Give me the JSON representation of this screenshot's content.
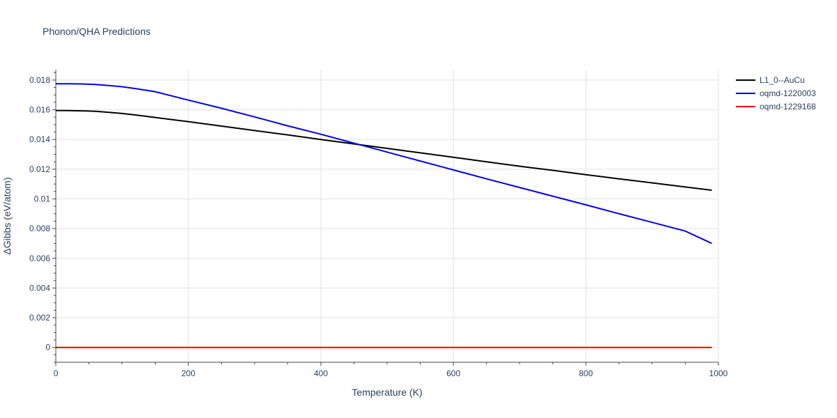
{
  "chart_data": {
    "type": "line",
    "title": "Phonon/QHA Predictions",
    "xlabel": "Temperature (K)",
    "ylabel": "ΔGibbs (eV/atom)",
    "xlim": [
      0,
      1000
    ],
    "ylim": [
      -0.001,
      0.0187
    ],
    "x_ticks": [
      0,
      200,
      400,
      600,
      800,
      1000
    ],
    "x_tick_labels": [
      "0",
      "200",
      "400",
      "600",
      "800",
      "1000"
    ],
    "y_ticks": [
      0,
      0.002,
      0.004,
      0.006,
      0.008,
      0.01,
      0.012,
      0.014,
      0.016,
      0.018
    ],
    "y_tick_labels": [
      "0",
      "0.002",
      "0.004",
      "0.006",
      "0.008",
      "0.01",
      "0.012",
      "0.014",
      "0.016",
      "0.018"
    ],
    "grid": true,
    "legend_position": "top-right",
    "series": [
      {
        "name": "L1_0--AuCu",
        "color": "#000000",
        "x": [
          0,
          20,
          40,
          60,
          80,
          100,
          120,
          150,
          200,
          250,
          300,
          350,
          400,
          450,
          500,
          550,
          600,
          650,
          700,
          750,
          800,
          850,
          900,
          950,
          990
        ],
        "y": [
          0.01595,
          0.01594,
          0.01593,
          0.0159,
          0.01583,
          0.01575,
          0.01565,
          0.01548,
          0.0152,
          0.0149,
          0.0146,
          0.01431,
          0.014,
          0.0137,
          0.0134,
          0.0131,
          0.0128,
          0.0125,
          0.0122,
          0.01192,
          0.01163,
          0.01135,
          0.01108,
          0.0108,
          0.01058
        ]
      },
      {
        "name": "oqmd-1220003",
        "color": "#0000ee",
        "x": [
          0,
          20,
          40,
          60,
          80,
          100,
          120,
          150,
          200,
          250,
          300,
          350,
          400,
          450,
          500,
          550,
          600,
          650,
          700,
          750,
          800,
          850,
          900,
          950,
          990
        ],
        "y": [
          0.01775,
          0.01775,
          0.01774,
          0.0177,
          0.01763,
          0.01755,
          0.01743,
          0.01722,
          0.01665,
          0.0161,
          0.01552,
          0.01492,
          0.01435,
          0.01375,
          0.01315,
          0.01255,
          0.01195,
          0.01135,
          0.01077,
          0.01018,
          0.0096,
          0.009,
          0.00842,
          0.00783,
          0.007
        ]
      },
      {
        "name": "oqmd-1229168",
        "color": "#ee0000",
        "x": [
          0,
          200,
          400,
          600,
          800,
          990
        ],
        "y": [
          0,
          0,
          0,
          0,
          0,
          0
        ]
      }
    ]
  }
}
